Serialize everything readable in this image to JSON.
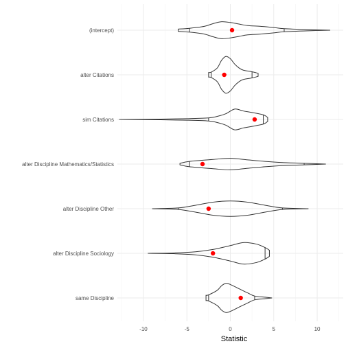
{
  "chart_data": {
    "type": "violin",
    "title": "",
    "xlabel": "Statistic",
    "ylabel": "",
    "xlim": [
      -13,
      13
    ],
    "x_ticks": [
      -10,
      -5,
      0,
      5,
      10
    ],
    "x_tick_labels": [
      "-10",
      "-5",
      "0",
      "5",
      "10"
    ],
    "categories": [
      "(intercept)",
      "alter Citations",
      "sim Citations",
      "alter Discipline Mathematics/Statistics",
      "alter Discipline Other",
      "alter Discipline Sociology",
      "same Discipline"
    ],
    "mean_color": "#ff0000",
    "series": [
      {
        "name": "(intercept)",
        "mean": 0.2,
        "quantiles": [
          -4.7,
          6.2
        ],
        "profile": [
          [
            -6.0,
            0.03
          ],
          [
            -4.7,
            0.05
          ],
          [
            -3.0,
            0.1
          ],
          [
            -2.0,
            0.17
          ],
          [
            -1.0,
            0.22
          ],
          [
            0.0,
            0.2
          ],
          [
            1.0,
            0.16
          ],
          [
            2.0,
            0.12
          ],
          [
            3.5,
            0.1
          ],
          [
            5.0,
            0.07
          ],
          [
            6.2,
            0.04
          ],
          [
            9.0,
            0.015
          ],
          [
            11.5,
            0.0
          ]
        ]
      },
      {
        "name": "alter Citations",
        "mean": -0.7,
        "quantiles": [
          -2.2,
          2.5
        ],
        "profile": [
          [
            -2.5,
            0.06
          ],
          [
            -2.2,
            0.07
          ],
          [
            -1.5,
            0.18
          ],
          [
            -1.0,
            0.38
          ],
          [
            -0.5,
            0.48
          ],
          [
            0.0,
            0.42
          ],
          [
            0.5,
            0.28
          ],
          [
            1.0,
            0.18
          ],
          [
            1.5,
            0.12
          ],
          [
            2.5,
            0.08
          ],
          [
            3.2,
            0.04
          ]
        ]
      },
      {
        "name": "sim Citations",
        "mean": 2.8,
        "quantiles": [
          -2.5,
          3.8
        ],
        "profile": [
          [
            -12.8,
            0.0
          ],
          [
            -8.0,
            0.01
          ],
          [
            -5.0,
            0.02
          ],
          [
            -2.5,
            0.04
          ],
          [
            -1.5,
            0.08
          ],
          [
            -0.5,
            0.15
          ],
          [
            0.5,
            0.27
          ],
          [
            1.5,
            0.22
          ],
          [
            2.5,
            0.18
          ],
          [
            3.8,
            0.12
          ],
          [
            4.3,
            0.05
          ]
        ]
      },
      {
        "name": "alter Discipline Mathematics/Statistics",
        "mean": -3.2,
        "quantiles": [
          -4.7,
          8.5
        ],
        "profile": [
          [
            -5.8,
            0.02
          ],
          [
            -4.7,
            0.07
          ],
          [
            -2.0,
            0.12
          ],
          [
            0.0,
            0.15
          ],
          [
            2.0,
            0.11
          ],
          [
            4.0,
            0.07
          ],
          [
            6.0,
            0.04
          ],
          [
            8.5,
            0.02
          ],
          [
            11.0,
            0.0
          ]
        ]
      },
      {
        "name": "alter Discipline Other",
        "mean": -2.5,
        "quantiles": [
          -6.0,
          6.0
        ],
        "profile": [
          [
            -9.0,
            0.0
          ],
          [
            -6.0,
            0.02
          ],
          [
            -4.0,
            0.09
          ],
          [
            -2.0,
            0.17
          ],
          [
            0.0,
            0.2
          ],
          [
            2.0,
            0.17
          ],
          [
            4.0,
            0.09
          ],
          [
            6.0,
            0.02
          ],
          [
            9.0,
            0.0
          ]
        ]
      },
      {
        "name": "alter Discipline Sociology",
        "mean": -2.0,
        "quantiles": [
          -6.5,
          4.0
        ],
        "profile": [
          [
            -9.5,
            0.0
          ],
          [
            -6.5,
            0.01
          ],
          [
            -4.0,
            0.04
          ],
          [
            -2.0,
            0.1
          ],
          [
            0.0,
            0.2
          ],
          [
            1.5,
            0.28
          ],
          [
            3.0,
            0.24
          ],
          [
            4.0,
            0.15
          ],
          [
            4.5,
            0.08
          ]
        ]
      },
      {
        "name": "same Discipline",
        "mean": 1.2,
        "quantiles": [
          -2.5,
          2.8
        ],
        "profile": [
          [
            -2.8,
            0.07
          ],
          [
            -2.5,
            0.08
          ],
          [
            -1.5,
            0.2
          ],
          [
            -1.0,
            0.32
          ],
          [
            -0.5,
            0.38
          ],
          [
            0.0,
            0.35
          ],
          [
            1.0,
            0.24
          ],
          [
            2.0,
            0.13
          ],
          [
            2.8,
            0.05
          ],
          [
            4.0,
            0.02
          ],
          [
            4.8,
            0.0
          ]
        ]
      }
    ]
  }
}
